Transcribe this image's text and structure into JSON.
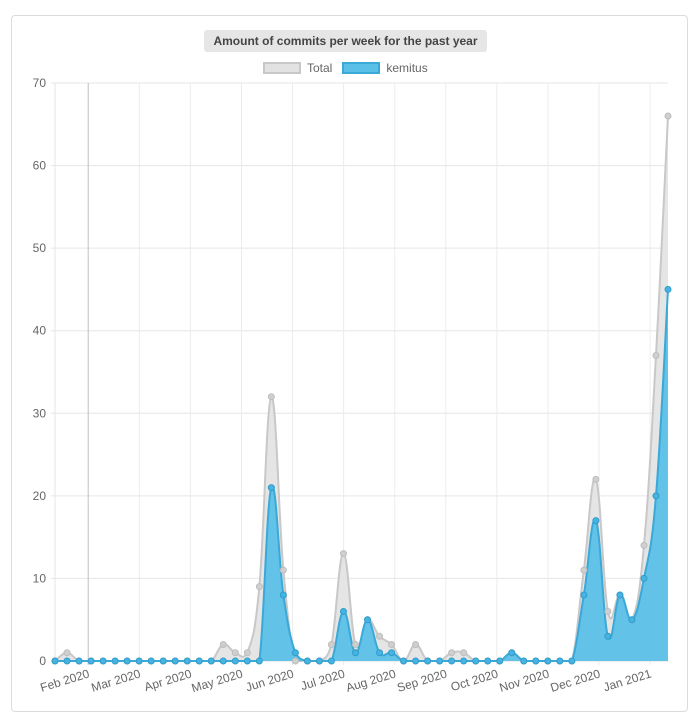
{
  "chart_data": {
    "type": "area",
    "title": "Amount of commits per week for the past year",
    "y_ticks": [
      "0",
      "10",
      "20",
      "30",
      "40",
      "50",
      "60",
      "70"
    ],
    "ylim": [
      0,
      70
    ],
    "x_ticks": [
      "Feb 2020",
      "Mar 2020",
      "Apr 2020",
      "May 2020",
      "Jun 2020",
      "Jul 2020",
      "Aug 2020",
      "Sep 2020",
      "Oct 2020",
      "Nov 2020",
      "Dec 2020",
      "Jan 2021"
    ],
    "legend_position": "top-center",
    "grid": true,
    "series": [
      {
        "name": "Total",
        "color": "#c8c8c8",
        "fill": "#e2e2e2",
        "values": [
          0,
          1,
          0,
          0,
          0,
          0,
          0,
          0,
          0,
          0,
          0,
          0,
          0,
          0,
          2,
          1,
          1,
          9,
          32,
          11,
          0,
          0,
          0,
          2,
          13,
          2,
          5,
          3,
          2,
          0,
          2,
          0,
          0,
          1,
          1,
          0,
          0,
          0,
          1,
          0,
          0,
          0,
          0,
          0,
          11,
          22,
          6,
          8,
          5,
          14,
          37,
          66
        ]
      },
      {
        "name": "kemitus",
        "color": "#3aa9d8",
        "fill": "#5bc0e8",
        "values": [
          0,
          0,
          0,
          0,
          0,
          0,
          0,
          0,
          0,
          0,
          0,
          0,
          0,
          0,
          0,
          0,
          0,
          0,
          21,
          8,
          1,
          0,
          0,
          0,
          6,
          1,
          5,
          1,
          1,
          0,
          0,
          0,
          0,
          0,
          0,
          0,
          0,
          0,
          1,
          0,
          0,
          0,
          0,
          0,
          8,
          17,
          3,
          8,
          5,
          10,
          20,
          45
        ]
      }
    ]
  }
}
